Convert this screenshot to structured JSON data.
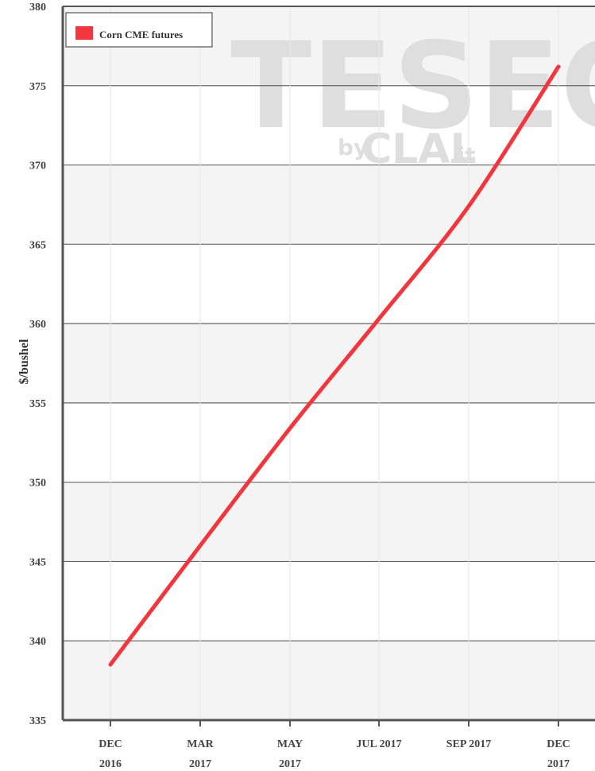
{
  "watermark": {
    "brand": "TESEO",
    "by": "by",
    "sub": "CLAL",
    "tld": ".it"
  },
  "chart_data": {
    "type": "line",
    "title": "",
    "xlabel": "",
    "ylabel": "$/bushel",
    "ylim": [
      335,
      380
    ],
    "yticks": [
      335,
      340,
      345,
      350,
      355,
      360,
      365,
      370,
      375,
      380
    ],
    "categories": [
      [
        "DEC",
        "2016"
      ],
      [
        "MAR",
        "2017"
      ],
      [
        "MAY",
        "2017"
      ],
      [
        "JUL 2017"
      ],
      [
        "SEP 2017"
      ],
      [
        "DEC",
        "2017"
      ]
    ],
    "grid": true,
    "legend_position": "top-left",
    "series": [
      {
        "name": "Corn CME futures",
        "color": "#f2363d",
        "values": [
          338.5,
          346.0,
          353.4,
          360.3,
          367.4,
          376.2
        ]
      }
    ]
  }
}
